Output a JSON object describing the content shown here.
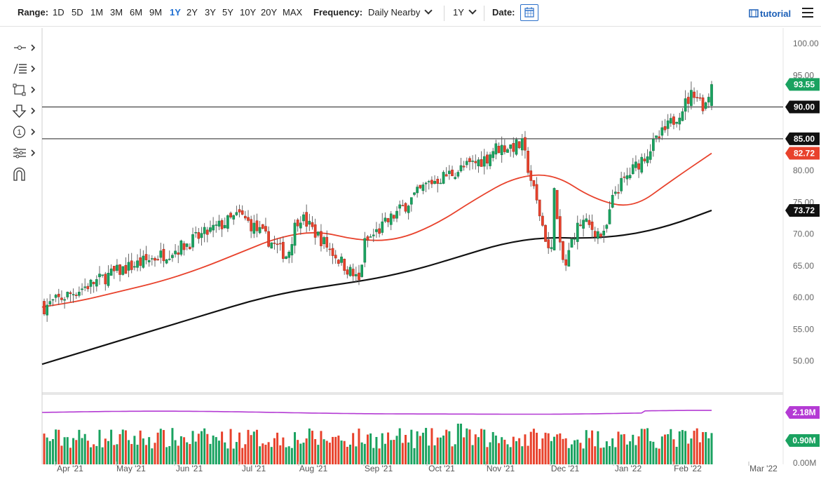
{
  "toolbar": {
    "range_label": "Range:",
    "ranges": [
      "1D",
      "5D",
      "1M",
      "3M",
      "6M",
      "9M",
      "1Y",
      "2Y",
      "3Y",
      "5Y",
      "10Y",
      "20Y",
      "MAX"
    ],
    "active_range": "1Y",
    "frequency_label": "Frequency:",
    "frequency_value": "Daily Nearby",
    "period_value": "1Y",
    "date_label": "Date:",
    "tutorial_label": "tutorial",
    "accent_color": "#1f6fd1"
  },
  "tools": [
    "line-tool-icon",
    "fib-tool-icon",
    "rectangle-tool-icon",
    "arrow-down-tool-icon",
    "annotation-tool-icon",
    "measure-tool-icon",
    "magnet-icon"
  ],
  "chart_data": {
    "type": "candlestick",
    "price_axis": {
      "min": 45,
      "max": 100,
      "ticks": [
        "100.00",
        "95.00",
        "90.00",
        "85.00",
        "80.00",
        "75.00",
        "70.00",
        "65.00",
        "60.00",
        "55.00",
        "50.00"
      ]
    },
    "x_labels": [
      "Apr '21",
      "May '21",
      "Jun '21",
      "Jul '21",
      "Aug '21",
      "Sep '21",
      "Oct '21",
      "Nov '21",
      "Dec '21",
      "Jan '22",
      "Feb '22",
      "Mar '22"
    ],
    "horizontal_lines": [
      90.0,
      85.0
    ],
    "price_tags": [
      {
        "value": "93.55",
        "color": "#1aa260"
      },
      {
        "value": "90.00",
        "color": "#111111"
      },
      {
        "value": "85.00",
        "color": "#111111"
      },
      {
        "value": "82.72",
        "color": "#e8422c"
      },
      {
        "value": "73.72",
        "color": "#111111"
      }
    ],
    "key_prices": [
      {
        "month": "Apr '21",
        "close": 59.5
      },
      {
        "month": "May '21",
        "close": 64.0
      },
      {
        "month": "Jun '21",
        "close": 67.5
      },
      {
        "month": "Jul '21",
        "close": 73.0
      },
      {
        "month": "Aug '21",
        "close": 73.0
      },
      {
        "month": "Sep '21",
        "close": 68.5
      },
      {
        "month": "Oct '21",
        "close": 78.0
      },
      {
        "month": "Nov '21",
        "close": 82.0
      },
      {
        "month": "Dec '21",
        "close": 66.0
      },
      {
        "month": "Jan '22",
        "close": 76.5
      },
      {
        "month": "Feb '22",
        "close": 88.0
      },
      {
        "month": "last",
        "close": 93.55
      }
    ],
    "ma_fast": {
      "color": "#e8422c",
      "last": 82.72,
      "points": [
        58.5,
        59.5,
        61,
        62.5,
        64.5,
        67,
        69.5,
        70.5,
        69,
        69,
        71.5,
        75.5,
        79,
        79.5,
        75.5,
        74,
        78.5,
        82.72
      ]
    },
    "ma_slow": {
      "color": "#111111",
      "last": 73.72,
      "points": [
        49.5,
        51.5,
        53.5,
        55.5,
        57.5,
        59.5,
        61,
        62,
        63,
        64.5,
        66.5,
        68.5,
        69.5,
        69.3,
        69.8,
        71.3,
        73.72
      ]
    },
    "volume": {
      "axis_ticks": [
        "0.00M"
      ],
      "tags": [
        {
          "value": "2.18M",
          "color": "#b43bd4"
        },
        {
          "value": "0.90M",
          "color": "#1aa260"
        }
      ],
      "avg_line_color": "#b43bd4"
    },
    "colors": {
      "up": "#1aa260",
      "down": "#e8422c",
      "wick": "#444444"
    }
  }
}
